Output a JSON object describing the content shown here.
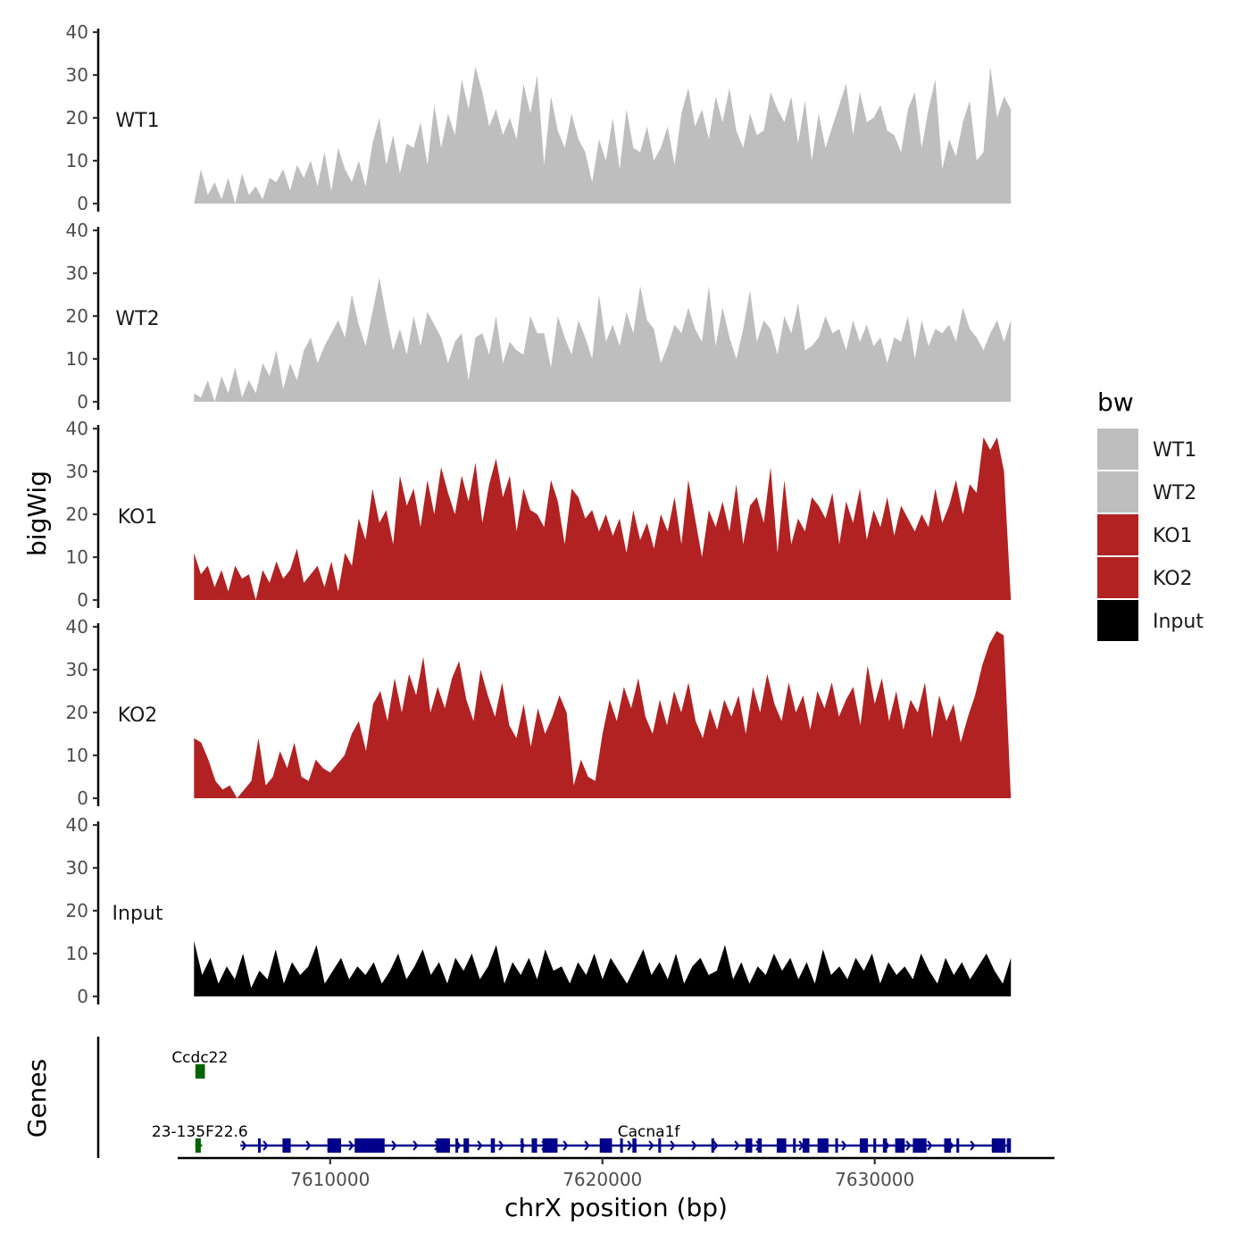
{
  "chart_data": {
    "type": "area",
    "ylabel": "bigWig",
    "xlabel": "chrX position (bp)",
    "xlim": [
      7604400,
      7636600
    ],
    "ylim": [
      0,
      40
    ],
    "yticks": [
      "0",
      "10",
      "20",
      "30",
      "40"
    ],
    "xticks": [
      {
        "value": 7610000,
        "label": "7610000"
      },
      {
        "value": 7620000,
        "label": "7620000"
      },
      {
        "value": 7630000,
        "label": "7630000"
      }
    ],
    "x_range": [
      7605000,
      7635000
    ],
    "tracks": [
      {
        "name": "WT1",
        "color": "#bebebe",
        "values": [
          0,
          8,
          2,
          5,
          1,
          6,
          0,
          7,
          2,
          4,
          1,
          6,
          5,
          8,
          3,
          9,
          6,
          10,
          4,
          12,
          3,
          13,
          8,
          5,
          10,
          4,
          14,
          20,
          9,
          16,
          7,
          14,
          13,
          19,
          9,
          23,
          13,
          21,
          16,
          29,
          22,
          32,
          26,
          18,
          22,
          16,
          20,
          15,
          28,
          21,
          30,
          9,
          25,
          17,
          13,
          21,
          15,
          12,
          5,
          15,
          10,
          20,
          8,
          22,
          13,
          12,
          18,
          10,
          13,
          18,
          9,
          21,
          27,
          18,
          22,
          15,
          25,
          19,
          27,
          17,
          13,
          21,
          16,
          17,
          26,
          22,
          19,
          25,
          14,
          24,
          10,
          21,
          13,
          18,
          23,
          28,
          16,
          26,
          19,
          20,
          23,
          17,
          16,
          12,
          22,
          26,
          13,
          22,
          29,
          8,
          15,
          11,
          19,
          24,
          10,
          12,
          32,
          20,
          25,
          22
        ]
      },
      {
        "name": "WT2",
        "color": "#bebebe",
        "values": [
          2,
          1,
          5,
          0,
          6,
          2,
          8,
          1,
          5,
          2,
          9,
          6,
          12,
          3,
          9,
          5,
          12,
          15,
          9,
          13,
          16,
          19,
          15,
          25,
          18,
          13,
          21,
          29,
          20,
          12,
          17,
          11,
          20,
          13,
          21,
          18,
          15,
          9,
          14,
          16,
          5,
          15,
          16,
          11,
          20,
          9,
          14,
          12,
          11,
          20,
          16,
          16,
          8,
          20,
          15,
          11,
          19,
          15,
          10,
          25,
          14,
          18,
          13,
          21,
          16,
          27,
          19,
          17,
          9,
          13,
          18,
          16,
          22,
          17,
          14,
          27,
          13,
          22,
          15,
          10,
          17,
          26,
          14,
          19,
          17,
          11,
          20,
          16,
          23,
          12,
          13,
          15,
          20,
          16,
          17,
          12,
          19,
          14,
          18,
          13,
          15,
          9,
          15,
          14,
          20,
          10,
          19,
          13,
          17,
          16,
          18,
          14,
          22,
          17,
          15,
          12,
          16,
          19,
          14,
          19
        ]
      },
      {
        "name": "KO1",
        "color": "#b22222",
        "values": [
          11,
          6,
          8,
          3,
          7,
          2,
          8,
          5,
          6,
          0,
          7,
          4,
          9,
          5,
          7,
          12,
          4,
          6,
          8,
          3,
          9,
          2,
          11,
          8,
          19,
          14,
          26,
          18,
          21,
          13,
          29,
          22,
          26,
          17,
          28,
          20,
          31,
          25,
          20,
          29,
          23,
          32,
          18,
          27,
          33,
          24,
          29,
          16,
          26,
          21,
          20,
          17,
          28,
          23,
          13,
          26,
          24,
          19,
          21,
          16,
          20,
          15,
          19,
          11,
          21,
          14,
          18,
          12,
          20,
          16,
          24,
          13,
          28,
          19,
          10,
          21,
          17,
          23,
          16,
          27,
          13,
          22,
          24,
          18,
          31,
          11,
          28,
          13,
          19,
          16,
          24,
          22,
          19,
          25,
          13,
          23,
          18,
          26,
          14,
          21,
          17,
          24,
          15,
          22,
          19,
          16,
          20,
          17,
          26,
          18,
          22,
          28,
          20,
          27,
          25,
          38,
          35,
          38,
          30,
          0
        ]
      },
      {
        "name": "KO2",
        "color": "#b22222",
        "values": [
          14,
          13,
          9,
          4,
          2,
          3,
          0,
          2,
          4,
          14,
          3,
          5,
          11,
          7,
          13,
          5,
          4,
          9,
          7,
          6,
          8,
          10,
          15,
          18,
          11,
          22,
          25,
          18,
          28,
          20,
          29,
          24,
          33,
          20,
          26,
          21,
          28,
          32,
          23,
          18,
          30,
          24,
          19,
          27,
          17,
          14,
          22,
          12,
          21,
          15,
          19,
          24,
          20,
          3,
          9,
          5,
          4,
          15,
          23,
          18,
          26,
          21,
          28,
          19,
          15,
          23,
          17,
          25,
          20,
          27,
          18,
          14,
          21,
          16,
          23,
          19,
          24,
          15,
          26,
          20,
          29,
          22,
          18,
          27,
          20,
          24,
          16,
          25,
          21,
          27,
          19,
          23,
          26,
          17,
          31,
          22,
          28,
          18,
          25,
          16,
          23,
          20,
          27,
          14,
          24,
          18,
          22,
          13,
          19,
          24,
          31,
          36,
          39,
          38,
          0
        ]
      },
      {
        "name": "Input",
        "color": "#000000",
        "values": [
          13,
          5,
          9,
          3,
          7,
          4,
          10,
          2,
          6,
          4,
          11,
          3,
          8,
          5,
          7,
          12,
          3,
          6,
          9,
          4,
          7,
          5,
          8,
          3,
          6,
          10,
          4,
          7,
          11,
          5,
          8,
          3,
          9,
          6,
          10,
          4,
          7,
          12,
          3,
          8,
          5,
          9,
          4,
          11,
          6,
          7,
          3,
          8,
          5,
          10,
          4,
          9,
          6,
          3,
          7,
          11,
          5,
          8,
          4,
          10,
          3,
          7,
          9,
          5,
          6,
          12,
          4,
          8,
          3,
          7,
          5,
          10,
          6,
          9,
          4,
          8,
          3,
          11,
          5,
          7,
          4,
          9,
          6,
          10,
          3,
          8,
          5,
          7,
          4,
          10,
          6,
          3,
          9,
          5,
          8,
          4,
          7,
          10,
          6,
          3,
          9
        ]
      }
    ],
    "legend": {
      "title": "bw",
      "position": "right",
      "items": [
        {
          "label": "WT1",
          "color": "#bebebe"
        },
        {
          "label": "WT2",
          "color": "#bebebe"
        },
        {
          "label": "KO1",
          "color": "#b22222"
        },
        {
          "label": "KO2",
          "color": "#b22222"
        },
        {
          "label": "Input",
          "color": "#000000"
        }
      ]
    },
    "genes_panel": {
      "title": "Genes",
      "genes": [
        {
          "name": "Ccdc22",
          "start": 7605050,
          "end": 7605400,
          "strand": "-",
          "color": "#006400",
          "row": 0,
          "exons": [
            [
              7605050,
              7605400
            ]
          ]
        },
        {
          "name": "23-135F22.6",
          "start": 7605050,
          "end": 7605300,
          "strand": "-",
          "color": "#006400",
          "row": 1,
          "exons": [
            [
              7605050,
              7605250
            ]
          ]
        },
        {
          "name": "Cacna1f",
          "start": 7606700,
          "end": 7635000,
          "strand": "+",
          "color": "#00008b",
          "row": 1,
          "exons": [
            [
              7607350,
              7607450
            ],
            [
              7608250,
              7608550
            ],
            [
              7609900,
              7610400
            ],
            [
              7610900,
              7612000
            ],
            [
              7613900,
              7614400
            ],
            [
              7614600,
              7614700
            ],
            [
              7614900,
              7615100
            ],
            [
              7615900,
              7616050
            ],
            [
              7617000,
              7617100
            ],
            [
              7617400,
              7617600
            ],
            [
              7617800,
              7618350
            ],
            [
              7619900,
              7620350
            ],
            [
              7620650,
              7620750
            ],
            [
              7621100,
              7621250
            ],
            [
              7622050,
              7622150
            ],
            [
              7624000,
              7624100
            ],
            [
              7625250,
              7625500
            ],
            [
              7625700,
              7625850
            ],
            [
              7626400,
              7626750
            ],
            [
              7627000,
              7627100
            ],
            [
              7627350,
              7627600
            ],
            [
              7627900,
              7628300
            ],
            [
              7628550,
              7628650
            ],
            [
              7629450,
              7629750
            ],
            [
              7629950,
              7630050
            ],
            [
              7630300,
              7630450
            ],
            [
              7630750,
              7631100
            ],
            [
              7631400,
              7631900
            ],
            [
              7632550,
              7632800
            ],
            [
              7633000,
              7633100
            ],
            [
              7634300,
              7634800
            ],
            [
              7634850,
              7635000
            ]
          ]
        }
      ]
    }
  }
}
